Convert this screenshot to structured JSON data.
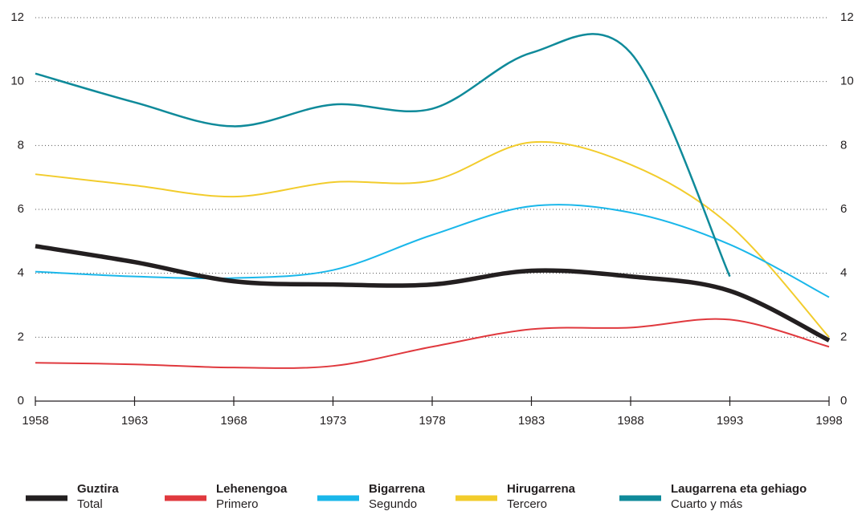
{
  "chart_data": {
    "type": "line",
    "x": [
      1958,
      1963,
      1968,
      1973,
      1978,
      1983,
      1988,
      1993,
      1998
    ],
    "xlim": [
      1958,
      1998
    ],
    "xticks": [
      1958,
      1963,
      1968,
      1973,
      1978,
      1983,
      1988,
      1993,
      1998
    ],
    "ylim": [
      0,
      12
    ],
    "yticks": [
      0,
      2,
      4,
      6,
      8,
      10,
      12
    ],
    "grid": true,
    "series": [
      {
        "name": "Guztira",
        "subname": "Total",
        "color": "#231f20",
        "width": 5.5,
        "values": [
          4.85,
          4.35,
          3.75,
          3.65,
          3.65,
          4.08,
          3.9,
          3.45,
          1.9
        ]
      },
      {
        "name": "Lehenengoa",
        "subname": "Primero",
        "color": "#e0393e",
        "width": 2,
        "values": [
          1.2,
          1.15,
          1.05,
          1.1,
          1.7,
          2.25,
          2.3,
          2.55,
          1.7
        ]
      },
      {
        "name": "Bigarrena",
        "subname": "Segundo",
        "color": "#1ab7ea",
        "width": 2,
        "values": [
          4.05,
          3.9,
          3.85,
          4.1,
          5.2,
          6.1,
          5.9,
          4.9,
          3.25
        ]
      },
      {
        "name": "Hirugarrena",
        "subname": "Tercero",
        "color": "#f2cc2c",
        "width": 2,
        "values": [
          7.1,
          6.75,
          6.4,
          6.85,
          6.9,
          8.1,
          7.4,
          5.5,
          2.0
        ]
      },
      {
        "name": "Laugarrena eta gehiago",
        "subname": "Cuarto y más",
        "color": "#0f8a9a",
        "width": 2.5,
        "values": [
          10.25,
          9.35,
          8.6,
          9.28,
          9.15,
          10.9,
          10.9,
          3.9,
          null
        ]
      }
    ]
  }
}
